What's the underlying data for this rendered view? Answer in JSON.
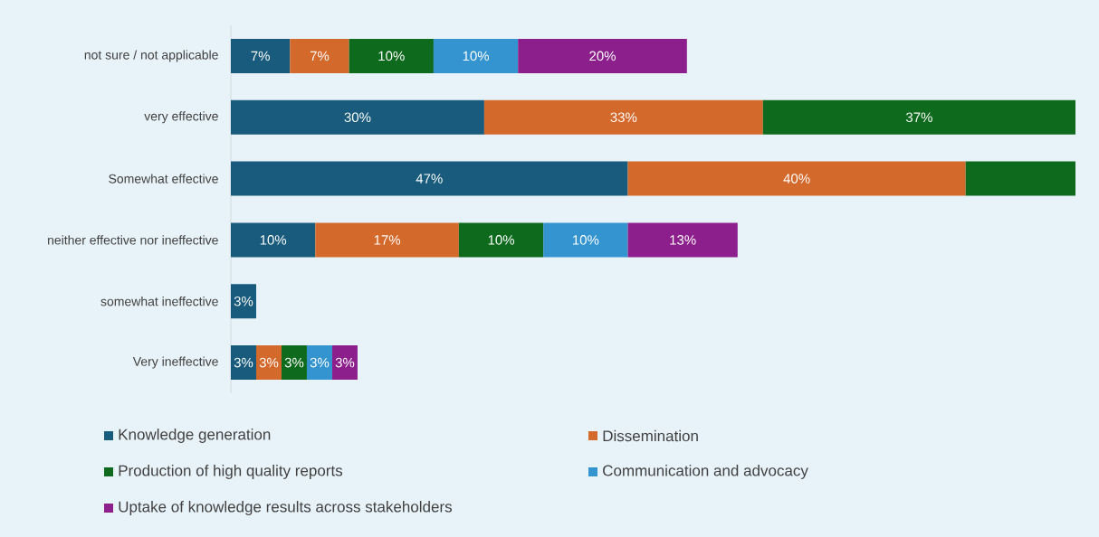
{
  "chart_data": {
    "type": "bar",
    "orientation": "horizontal",
    "stacked": true,
    "legend": "bottom",
    "categories": [
      "not sure / not applicable",
      "very effective",
      "Somewhat effective",
      "neither effective nor ineffective",
      "somewhat ineffective",
      "Very ineffective"
    ],
    "series": [
      {
        "name": "Knowledge generation",
        "color": "#195b7c",
        "values": [
          7,
          30,
          47,
          10,
          3,
          3
        ],
        "value_labels": [
          "7%",
          "30%",
          "47%",
          "10%",
          "3%",
          "3%"
        ]
      },
      {
        "name": "Dissemination",
        "color": "#d4692c",
        "values": [
          7,
          33,
          40,
          17,
          null,
          3
        ],
        "value_labels": [
          "7%",
          "33%",
          "40%",
          "17%",
          null,
          "3%"
        ]
      },
      {
        "name": "Production of high quality reports",
        "color": "#0e6a1c",
        "values": [
          10,
          37,
          13,
          10,
          null,
          3
        ],
        "value_labels": [
          "10%",
          "37%",
          null,
          "10%",
          null,
          "3%"
        ]
      },
      {
        "name": "Communication and advocacy",
        "color": "#3394cf",
        "values": [
          10,
          null,
          null,
          10,
          null,
          3
        ],
        "value_labels": [
          "10%",
          null,
          null,
          "10%",
          null,
          "3%"
        ]
      },
      {
        "name": "Uptake of knowledge results across stakeholders",
        "color": "#8c1f8b",
        "values": [
          20,
          null,
          null,
          13,
          null,
          3
        ],
        "value_labels": [
          "20%",
          null,
          null,
          "13%",
          null,
          "3%"
        ]
      }
    ]
  }
}
